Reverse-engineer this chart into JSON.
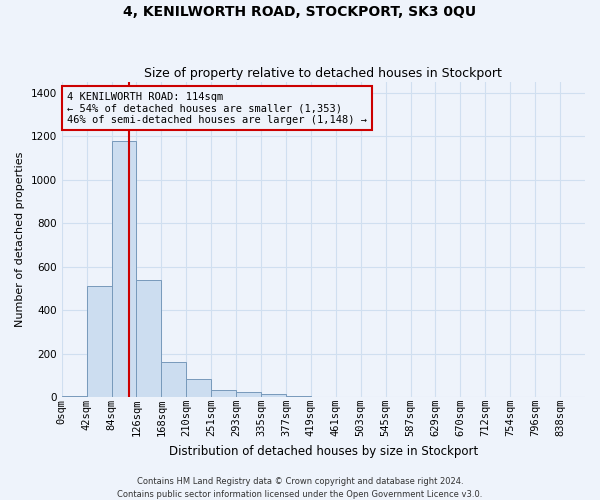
{
  "title": "4, KENILWORTH ROAD, STOCKPORT, SK3 0QU",
  "subtitle": "Size of property relative to detached houses in Stockport",
  "xlabel": "Distribution of detached houses by size in Stockport",
  "ylabel": "Number of detached properties",
  "footer_line1": "Contains HM Land Registry data © Crown copyright and database right 2024.",
  "footer_line2": "Contains public sector information licensed under the Open Government Licence v3.0.",
  "bar_color": "#ccddf0",
  "bar_edge_color": "#7799bb",
  "grid_color": "#d0dff0",
  "annotation_box_color": "#cc0000",
  "property_line_color": "#cc0000",
  "categories": [
    "0sqm",
    "42sqm",
    "84sqm",
    "126sqm",
    "168sqm",
    "210sqm",
    "251sqm",
    "293sqm",
    "335sqm",
    "377sqm",
    "419sqm",
    "461sqm",
    "503sqm",
    "545sqm",
    "587sqm",
    "629sqm",
    "670sqm",
    "712sqm",
    "754sqm",
    "796sqm",
    "838sqm"
  ],
  "bar_values": [
    5,
    510,
    1180,
    540,
    160,
    85,
    32,
    25,
    14,
    5,
    2,
    0,
    0,
    0,
    0,
    0,
    0,
    0,
    0,
    0,
    0
  ],
  "property_size": 114,
  "bin_width": 42,
  "annotation_line1": "4 KENILWORTH ROAD: 114sqm",
  "annotation_line2": "← 54% of detached houses are smaller (1,353)",
  "annotation_line3": "46% of semi-detached houses are larger (1,148) →",
  "ylim": [
    0,
    1450
  ],
  "yticks": [
    0,
    200,
    400,
    600,
    800,
    1000,
    1200,
    1400
  ],
  "background_color": "#eef3fb",
  "title_fontsize": 10,
  "subtitle_fontsize": 9,
  "ylabel_fontsize": 8,
  "xlabel_fontsize": 8.5,
  "footer_fontsize": 6,
  "tick_fontsize": 7.5,
  "annot_fontsize": 7.5
}
